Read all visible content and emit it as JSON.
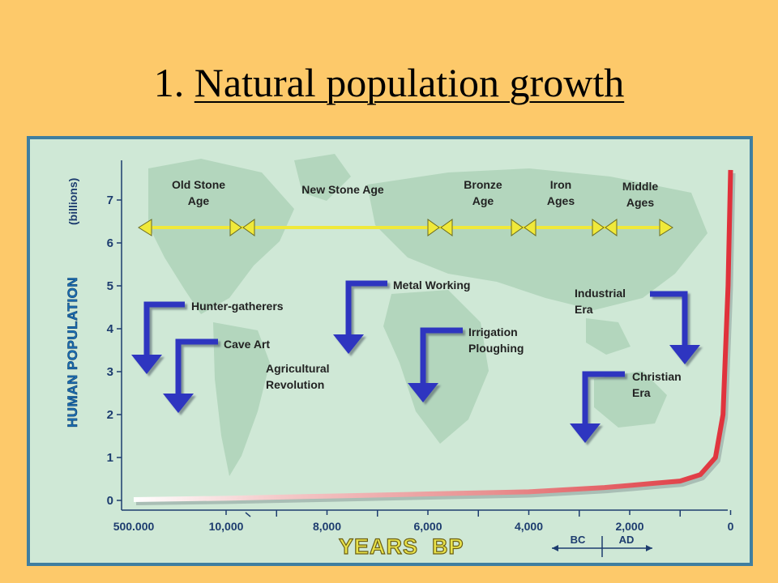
{
  "slide": {
    "title_number": "1.",
    "title_text": "Natural population growth"
  },
  "colors": {
    "background": "#fdc96a",
    "frame": "#3f7ea0",
    "plot_bg": "#cfe8d6",
    "land": "#b3d6bd",
    "axis_text": "#1d3c6f",
    "ylabel_color": "#1c70b2",
    "xlabel_color": "#e8e24a",
    "era_line": "#f0e93a",
    "arrow": "#2d35c0",
    "curve": "#e0303a"
  },
  "chart_data": {
    "type": "line",
    "title": "",
    "xlabel": "YEARS  BP",
    "ylabel": "HUMAN POPULATION",
    "ylabel_unit": "(billions)",
    "y_ticks": [
      "0",
      "1",
      "2",
      "3",
      "4",
      "5",
      "6",
      "7"
    ],
    "ylim": [
      0,
      8
    ],
    "x_ticks": [
      "500.000",
      "10,000",
      "8,000",
      "6,000",
      "4,000",
      "2,000",
      "0"
    ],
    "x_era_split": {
      "bc": "BC",
      "ad": "AD"
    },
    "grid": false,
    "series": [
      {
        "x": [
          "500.000",
          10000,
          8000,
          6000,
          4000,
          2500,
          2000,
          1500,
          1000,
          600,
          300,
          150,
          50,
          0
        ],
        "values": [
          0.02,
          0.05,
          0.1,
          0.15,
          0.2,
          0.3,
          0.35,
          0.4,
          0.45,
          0.6,
          1.0,
          2.0,
          5.0,
          7.7
        ]
      }
    ],
    "eras": [
      "Old Stone Age",
      "New Stone Age",
      "Bronze Age",
      "Iron Ages",
      "Middle Ages"
    ],
    "annotations": [
      "Hunter-gatherers",
      "Cave Art",
      "Agricultural Revolution",
      "Metal Working",
      "Irrigation Ploughing",
      "Christian Era",
      "Industrial Era"
    ]
  },
  "labels": {
    "eras": [
      {
        "line1": "Old Stone",
        "line2": "Age"
      },
      {
        "line1": "New Stone Age",
        "line2": ""
      },
      {
        "line1": "Bronze",
        "line2": "Age"
      },
      {
        "line1": "Iron",
        "line2": "Ages"
      },
      {
        "line1": "Middle",
        "line2": "Ages"
      }
    ],
    "events": [
      {
        "line1": "Hunter-gatherers",
        "line2": ""
      },
      {
        "line1": "Cave Art",
        "line2": ""
      },
      {
        "line1": "Agricultural",
        "line2": "Revolution"
      },
      {
        "line1": "Metal Working",
        "line2": ""
      },
      {
        "line1": "Irrigation",
        "line2": "Ploughing"
      },
      {
        "line1": "Christian",
        "line2": "Era"
      },
      {
        "line1": "Industrial",
        "line2": "Era"
      }
    ]
  }
}
